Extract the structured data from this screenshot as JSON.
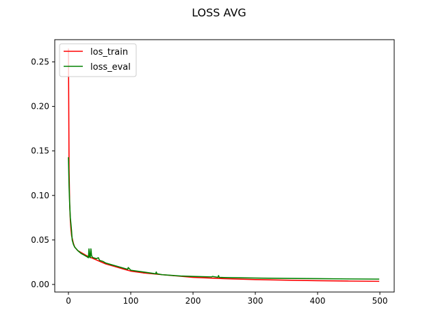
{
  "chart_data": {
    "type": "line",
    "title": "LOSS AVG",
    "xlabel": "",
    "ylabel": "",
    "xlim": [
      -22,
      523
    ],
    "ylim": [
      -0.0085,
      0.275
    ],
    "x_ticks": [
      0,
      100,
      200,
      300,
      400,
      500
    ],
    "y_ticks": [
      0.0,
      0.05,
      0.1,
      0.15,
      0.2,
      0.25
    ],
    "x_tick_labels": [
      "0",
      "100",
      "200",
      "300",
      "400",
      "500"
    ],
    "y_tick_labels": [
      "0.00",
      "0.05",
      "0.10",
      "0.15",
      "0.20",
      "0.25"
    ],
    "grid": false,
    "legend_position": "top-left",
    "series": [
      {
        "name": "los_train",
        "color": "#ff0000",
        "x": [
          0,
          1,
          2,
          3,
          4,
          5,
          6,
          8,
          10,
          15,
          20,
          25,
          30,
          40,
          50,
          60,
          75,
          90,
          100,
          120,
          150,
          200,
          250,
          300,
          350,
          400,
          450,
          499
        ],
        "y": [
          0.265,
          0.13,
          0.09,
          0.072,
          0.062,
          0.055,
          0.052,
          0.046,
          0.042,
          0.038,
          0.036,
          0.034,
          0.032,
          0.029,
          0.026,
          0.023,
          0.02,
          0.017,
          0.015,
          0.013,
          0.011,
          0.008,
          0.0065,
          0.0055,
          0.0048,
          0.0042,
          0.0038,
          0.0035
        ]
      },
      {
        "name": "loss_eval",
        "color": "#008000",
        "x": [
          0,
          1,
          2,
          3,
          4,
          5,
          6,
          8,
          10,
          15,
          20,
          25,
          30,
          32,
          33,
          34,
          35,
          36,
          37,
          38,
          40,
          45,
          48,
          50,
          55,
          60,
          70,
          80,
          90,
          95,
          96,
          100,
          110,
          120,
          140,
          141,
          142,
          150,
          180,
          200,
          230,
          231,
          240,
          241,
          242,
          250,
          300,
          350,
          400,
          450,
          499
        ],
        "y": [
          0.143,
          0.11,
          0.09,
          0.075,
          0.068,
          0.06,
          0.05,
          0.045,
          0.042,
          0.038,
          0.035,
          0.033,
          0.031,
          0.03,
          0.04,
          0.031,
          0.03,
          0.04,
          0.033,
          0.031,
          0.03,
          0.029,
          0.03,
          0.027,
          0.026,
          0.024,
          0.022,
          0.02,
          0.018,
          0.017,
          0.019,
          0.016,
          0.015,
          0.014,
          0.012,
          0.014,
          0.012,
          0.011,
          0.0095,
          0.009,
          0.0085,
          0.009,
          0.008,
          0.01,
          0.008,
          0.0078,
          0.0072,
          0.0068,
          0.0065,
          0.0062,
          0.006
        ]
      }
    ]
  }
}
